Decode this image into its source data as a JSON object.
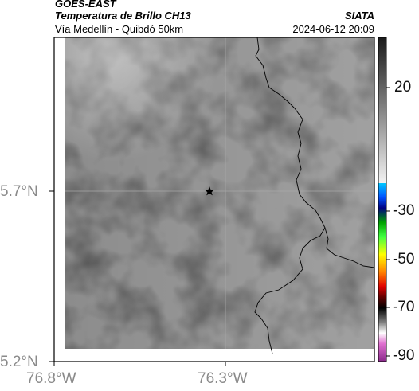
{
  "header": {
    "satellite": "GOES-EAST",
    "product": "Temperatura de Brillo CH13",
    "provider": "SIATA",
    "region": "Vía Medellín - Quibdó 50km",
    "datetime": "2024-06-12 20:09"
  },
  "map": {
    "lat_ticks": [
      "5.7°N",
      "5.2°N"
    ],
    "lon_ticks": [
      "76.8°W",
      "76.3°W"
    ],
    "marker_icon": "star-icon"
  },
  "colorbar": {
    "labels": [
      "20",
      "-30",
      "-50",
      "-70",
      "-90"
    ]
  }
}
